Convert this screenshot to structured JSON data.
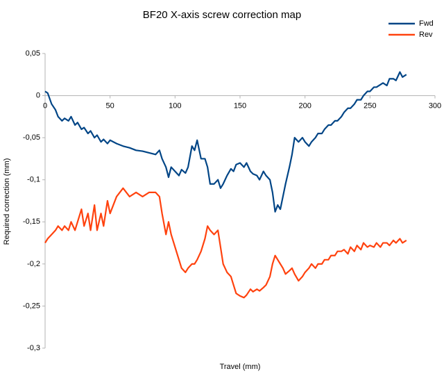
{
  "chart_data": {
    "type": "line",
    "title": "BF20 X-axis screw correction map",
    "x_label": "Travel (mm)",
    "y_label": "Required correction (mm)",
    "x": [
      0,
      2,
      5,
      8,
      10,
      13,
      15,
      18,
      20,
      23,
      25,
      28,
      30,
      33,
      35,
      38,
      40,
      43,
      45,
      48,
      50,
      55,
      60,
      65,
      70,
      75,
      80,
      85,
      88,
      90,
      93,
      95,
      97,
      100,
      103,
      105,
      108,
      110,
      113,
      115,
      117,
      120,
      123,
      125,
      127,
      130,
      133,
      135,
      137,
      140,
      143,
      145,
      147,
      150,
      153,
      155,
      158,
      160,
      163,
      165,
      168,
      170,
      173,
      175,
      177,
      179,
      181,
      183,
      185,
      188,
      190,
      192,
      195,
      198,
      200,
      203,
      205,
      208,
      210,
      213,
      215,
      218,
      220,
      223,
      225,
      228,
      230,
      233,
      235,
      238,
      240,
      243,
      245,
      248,
      250,
      253,
      255,
      258,
      260,
      263,
      265,
      268,
      270,
      273,
      275,
      278
    ],
    "series": [
      {
        "name": "Fwd",
        "color": "#004586",
        "values": [
          0.005,
          0.003,
          -0.01,
          -0.017,
          -0.025,
          -0.03,
          -0.027,
          -0.03,
          -0.025,
          -0.035,
          -0.032,
          -0.04,
          -0.038,
          -0.045,
          -0.042,
          -0.05,
          -0.047,
          -0.055,
          -0.052,
          -0.057,
          -0.053,
          -0.057,
          -0.06,
          -0.062,
          -0.065,
          -0.066,
          -0.068,
          -0.07,
          -0.065,
          -0.075,
          -0.085,
          -0.097,
          -0.085,
          -0.09,
          -0.095,
          -0.088,
          -0.092,
          -0.085,
          -0.06,
          -0.065,
          -0.053,
          -0.075,
          -0.075,
          -0.085,
          -0.105,
          -0.105,
          -0.1,
          -0.11,
          -0.105,
          -0.095,
          -0.087,
          -0.09,
          -0.082,
          -0.08,
          -0.085,
          -0.08,
          -0.09,
          -0.093,
          -0.095,
          -0.1,
          -0.09,
          -0.095,
          -0.1,
          -0.115,
          -0.138,
          -0.13,
          -0.135,
          -0.12,
          -0.105,
          -0.085,
          -0.07,
          -0.05,
          -0.055,
          -0.05,
          -0.055,
          -0.06,
          -0.055,
          -0.05,
          -0.045,
          -0.045,
          -0.04,
          -0.035,
          -0.035,
          -0.03,
          -0.03,
          -0.025,
          -0.02,
          -0.015,
          -0.015,
          -0.01,
          -0.005,
          -0.005,
          0.0,
          0.005,
          0.005,
          0.01,
          0.01,
          0.013,
          0.015,
          0.012,
          0.02,
          0.02,
          0.018,
          0.028,
          0.022,
          0.025
        ]
      },
      {
        "name": "Rev",
        "color": "#ff420e",
        "values": [
          -0.175,
          -0.17,
          -0.165,
          -0.16,
          -0.155,
          -0.16,
          -0.155,
          -0.16,
          -0.15,
          -0.16,
          -0.15,
          -0.135,
          -0.155,
          -0.14,
          -0.16,
          -0.13,
          -0.16,
          -0.14,
          -0.155,
          -0.125,
          -0.14,
          -0.12,
          -0.11,
          -0.12,
          -0.115,
          -0.12,
          -0.115,
          -0.115,
          -0.12,
          -0.14,
          -0.165,
          -0.15,
          -0.165,
          -0.18,
          -0.195,
          -0.205,
          -0.21,
          -0.205,
          -0.2,
          -0.2,
          -0.195,
          -0.185,
          -0.17,
          -0.155,
          -0.16,
          -0.165,
          -0.16,
          -0.18,
          -0.2,
          -0.21,
          -0.215,
          -0.225,
          -0.235,
          -0.238,
          -0.24,
          -0.237,
          -0.23,
          -0.233,
          -0.23,
          -0.232,
          -0.228,
          -0.225,
          -0.215,
          -0.2,
          -0.19,
          -0.195,
          -0.2,
          -0.205,
          -0.212,
          -0.208,
          -0.205,
          -0.212,
          -0.22,
          -0.215,
          -0.21,
          -0.205,
          -0.2,
          -0.205,
          -0.2,
          -0.2,
          -0.195,
          -0.195,
          -0.19,
          -0.19,
          -0.185,
          -0.185,
          -0.183,
          -0.188,
          -0.18,
          -0.185,
          -0.178,
          -0.183,
          -0.175,
          -0.18,
          -0.178,
          -0.18,
          -0.175,
          -0.18,
          -0.175,
          -0.175,
          -0.178,
          -0.172,
          -0.175,
          -0.17,
          -0.175,
          -0.172
        ]
      }
    ],
    "xlim": [
      0,
      300
    ],
    "xticks": [
      0,
      50,
      100,
      150,
      200,
      250,
      300
    ],
    "ylim": [
      -0.3,
      0.05
    ],
    "yticks": [
      {
        "value": 0.05,
        "label": "0,05"
      },
      {
        "value": 0,
        "label": "0"
      },
      {
        "value": -0.05,
        "label": "-0,05"
      },
      {
        "value": -0.1,
        "label": "-0,1"
      },
      {
        "value": -0.15,
        "label": "-0,15"
      },
      {
        "value": -0.2,
        "label": "-0,2"
      },
      {
        "value": -0.25,
        "label": "-0,25"
      },
      {
        "value": -0.3,
        "label": "-0,3"
      }
    ],
    "grid": false,
    "legend": "top-right"
  }
}
